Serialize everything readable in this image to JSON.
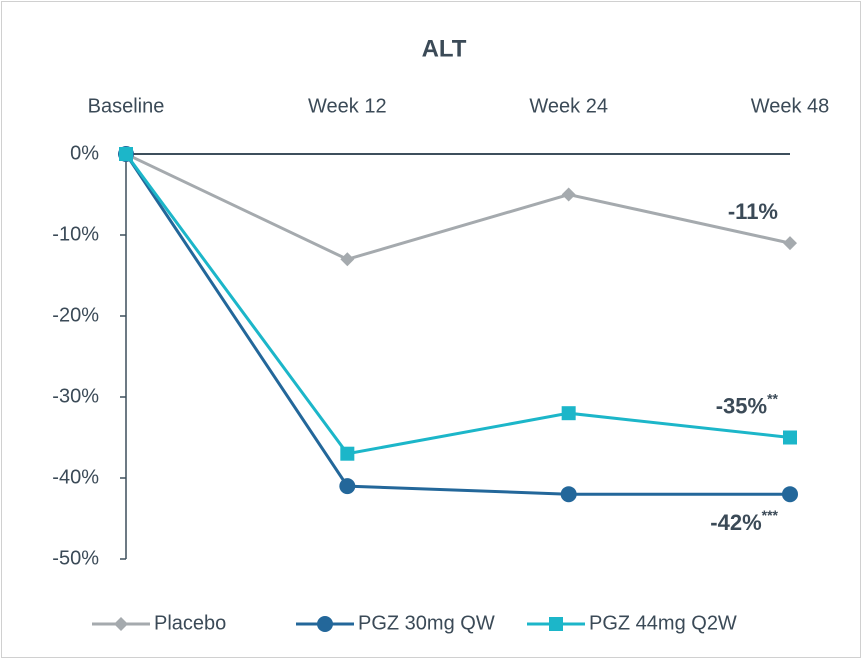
{
  "chart_data": {
    "type": "line",
    "title": "ALT",
    "categories": [
      "Baseline",
      "Week 12",
      "Week 24",
      "Week 48"
    ],
    "ylim": [
      -50,
      0
    ],
    "yticks": [
      {
        "value": 0,
        "label": "0%"
      },
      {
        "value": -10,
        "label": "-10%"
      },
      {
        "value": -20,
        "label": "-20%"
      },
      {
        "value": -30,
        "label": "-30%"
      },
      {
        "value": -40,
        "label": "-40%"
      },
      {
        "value": -50,
        "label": "-50%"
      }
    ],
    "legend": "bottom",
    "series": [
      {
        "name": "Placebo",
        "color": "#a5aaae",
        "marker": "diamond",
        "values": [
          0,
          -13,
          -5,
          -11
        ],
        "value_labels": [
          null,
          null,
          null,
          "-11%"
        ],
        "value_label_marks": [
          null,
          null,
          null,
          null
        ]
      },
      {
        "name": "PGZ 30mg QW",
        "color": "#23679a",
        "marker": "circle",
        "values": [
          0,
          -41,
          -42,
          -42
        ],
        "value_labels": [
          null,
          null,
          null,
          "-42%"
        ],
        "value_label_marks": [
          null,
          null,
          null,
          "***"
        ]
      },
      {
        "name": "PGZ 44mg Q2W",
        "color": "#1cb6c9",
        "marker": "square",
        "values": [
          0,
          -37,
          -32,
          -35
        ],
        "value_labels": [
          null,
          null,
          null,
          "-35%"
        ],
        "value_label_marks": [
          null,
          null,
          null,
          "**"
        ]
      }
    ]
  }
}
